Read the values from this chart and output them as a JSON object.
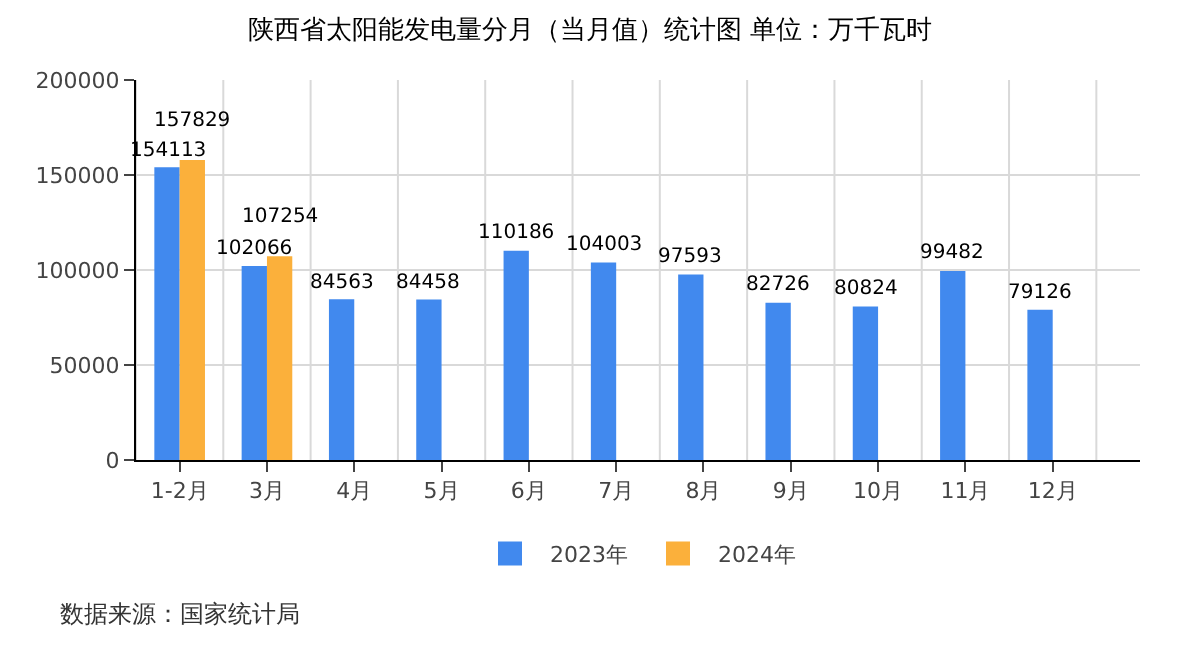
{
  "chart_data": {
    "type": "bar",
    "title": "陕西省太阳能发电量分月（当月值）统计图 单位：万千瓦时",
    "categories": [
      "1-2月",
      "3月",
      "4月",
      "5月",
      "6月",
      "7月",
      "8月",
      "9月",
      "10月",
      "11月",
      "12月"
    ],
    "series": [
      {
        "name": "2023年",
        "color": "#4189ee",
        "values": [
          154113,
          102066,
          84563,
          84458,
          110186,
          104003,
          97593,
          82726,
          80824,
          99482,
          79126
        ]
      },
      {
        "name": "2024年",
        "color": "#fbb03b",
        "values": [
          157829,
          107254,
          null,
          null,
          null,
          null,
          null,
          null,
          null,
          null,
          null
        ]
      }
    ],
    "ylim": [
      0,
      200000
    ],
    "yticks": [
      0,
      50000,
      100000,
      150000,
      200000
    ],
    "grid": true,
    "legend": "bottom",
    "data_labels": true,
    "annotations": [
      "数据来源：国家统计局"
    ]
  }
}
